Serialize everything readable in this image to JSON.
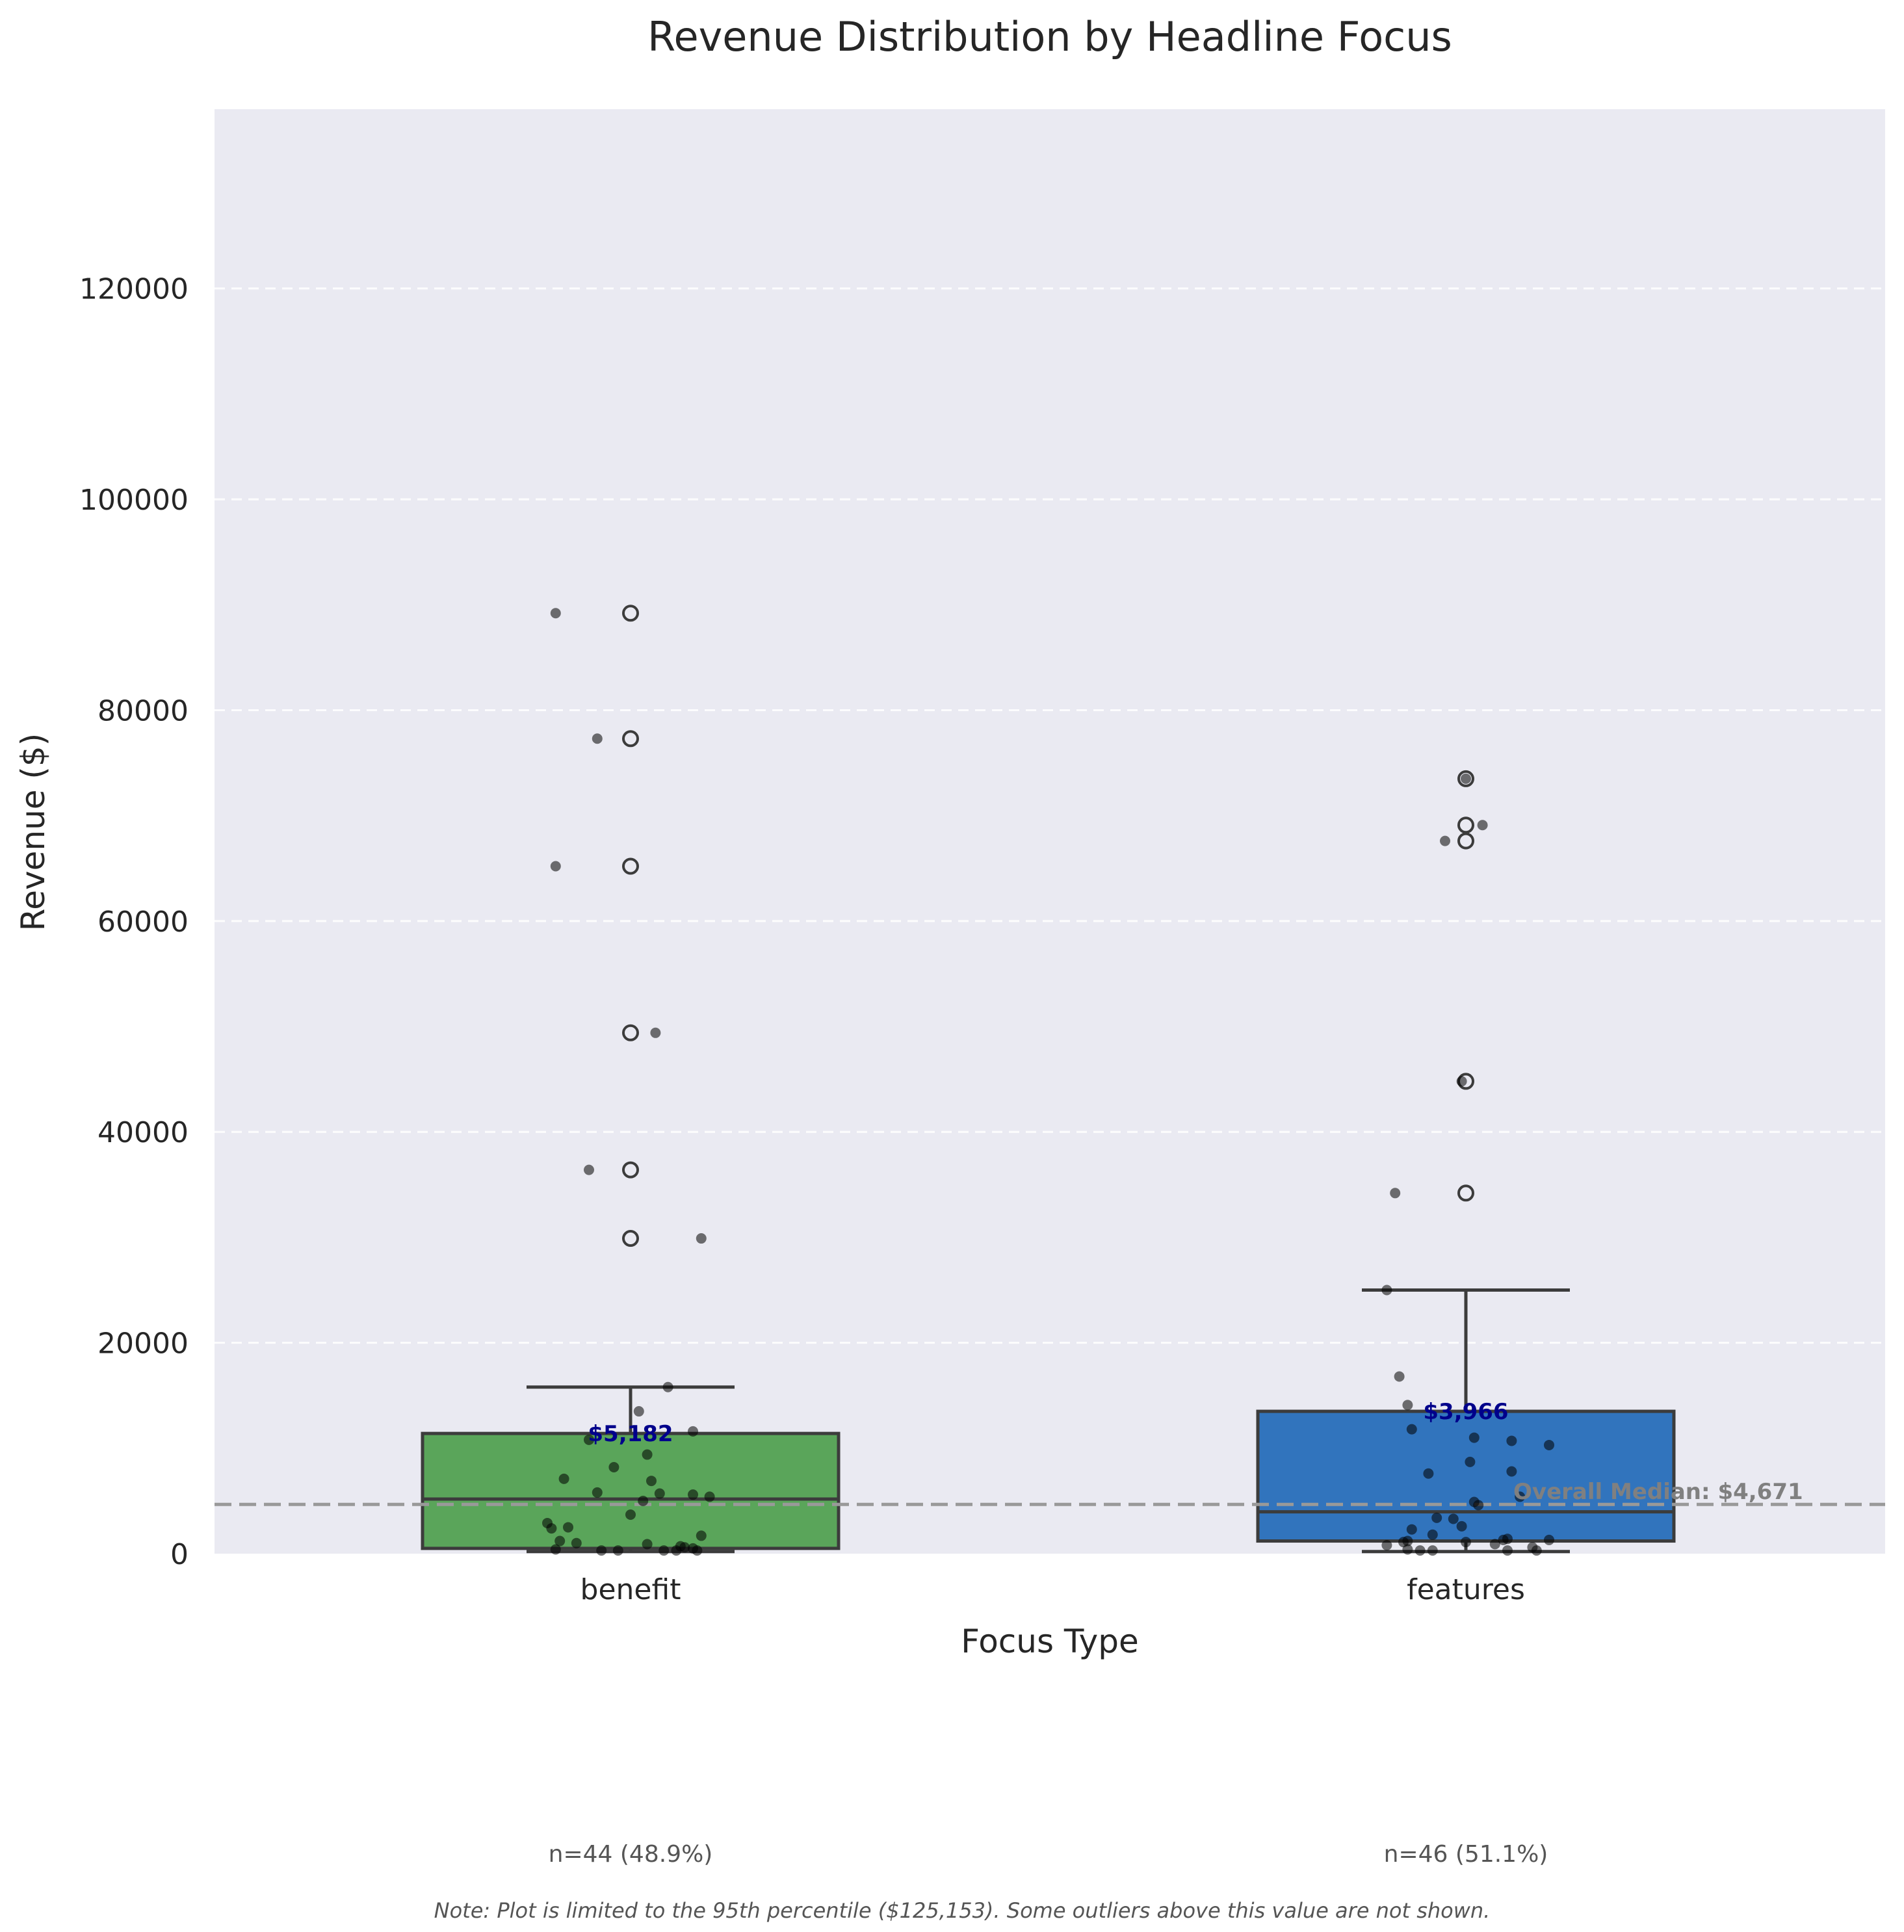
{
  "chart_data": {
    "type": "box",
    "title": "Revenue Distribution by Headline Focus",
    "xlabel": "Focus Type",
    "ylabel": "Revenue ($)",
    "ylim": [
      0,
      137000
    ],
    "yticks": [
      0,
      20000,
      40000,
      60000,
      80000,
      100000,
      120000
    ],
    "ytick_labels": [
      "0",
      "20000",
      "40000",
      "60000",
      "80000",
      "100000",
      "120000"
    ],
    "grid": true,
    "categories": [
      "benefit",
      "features"
    ],
    "colors": [
      "#5aa55a",
      "#3174bd"
    ],
    "boxes": [
      {
        "category": "benefit",
        "whisker_low": 200,
        "q1": 500,
        "median": 5182,
        "q3": 11400,
        "whisker_high": 15800,
        "outliers": [
          29900,
          36400,
          49400,
          65200,
          77300,
          89200
        ],
        "median_label": "$5,182",
        "count_label": "n=44 (48.9%)",
        "points": [
          [
            -0.18,
            89200
          ],
          [
            -0.08,
            77300
          ],
          [
            -0.18,
            65200
          ],
          [
            0.06,
            49400
          ],
          [
            -0.1,
            36400
          ],
          [
            0.17,
            29900
          ],
          [
            0.09,
            15800
          ],
          [
            0.02,
            13500
          ],
          [
            0.15,
            11600
          ],
          [
            -0.1,
            10800
          ],
          [
            0.04,
            9400
          ],
          [
            -0.04,
            8200
          ],
          [
            -0.16,
            7100
          ],
          [
            0.05,
            6900
          ],
          [
            -0.08,
            5800
          ],
          [
            0.07,
            5700
          ],
          [
            0.15,
            5600
          ],
          [
            0.19,
            5400
          ],
          [
            0.03,
            5000
          ],
          [
            0.0,
            3700
          ],
          [
            -0.2,
            2900
          ],
          [
            -0.15,
            2500
          ],
          [
            -0.19,
            2400
          ],
          [
            0.17,
            1700
          ],
          [
            -0.17,
            1200
          ],
          [
            -0.13,
            1000
          ],
          [
            0.04,
            900
          ],
          [
            0.12,
            700
          ],
          [
            0.13,
            600
          ],
          [
            0.15,
            500
          ],
          [
            -0.18,
            400
          ],
          [
            -0.07,
            300
          ],
          [
            -0.03,
            300
          ],
          [
            0.08,
            300
          ],
          [
            0.11,
            300
          ],
          [
            0.16,
            300
          ]
        ]
      },
      {
        "category": "features",
        "whisker_low": 200,
        "q1": 1200,
        "median": 3966,
        "q3": 13500,
        "whisker_high": 25000,
        "outliers": [
          34200,
          44800,
          67600,
          69100,
          73500
        ],
        "median_label": "$3,966",
        "count_label": "n=46 (51.1%)",
        "points": [
          [
            0.0,
            73500
          ],
          [
            0.04,
            69100
          ],
          [
            -0.05,
            67600
          ],
          [
            -0.01,
            44800
          ],
          [
            -0.17,
            34200
          ],
          [
            -0.19,
            25000
          ],
          [
            -0.16,
            16800
          ],
          [
            -0.14,
            14100
          ],
          [
            -0.13,
            11800
          ],
          [
            0.02,
            11000
          ],
          [
            0.11,
            10700
          ],
          [
            0.2,
            10300
          ],
          [
            0.01,
            8700
          ],
          [
            0.11,
            7800
          ],
          [
            -0.09,
            7600
          ],
          [
            0.13,
            5400
          ],
          [
            0.02,
            4900
          ],
          [
            0.03,
            4600
          ],
          [
            -0.07,
            3400
          ],
          [
            -0.03,
            3300
          ],
          [
            -0.01,
            2600
          ],
          [
            -0.13,
            2300
          ],
          [
            -0.08,
            1800
          ],
          [
            0.1,
            1400
          ],
          [
            0.09,
            1300
          ],
          [
            0.2,
            1300
          ],
          [
            -0.14,
            1200
          ],
          [
            -0.15,
            1100
          ],
          [
            0.0,
            1100
          ],
          [
            0.07,
            900
          ],
          [
            -0.19,
            800
          ],
          [
            0.16,
            600
          ],
          [
            -0.14,
            400
          ],
          [
            -0.11,
            300
          ],
          [
            -0.08,
            300
          ],
          [
            0.1,
            300
          ],
          [
            0.17,
            300
          ]
        ]
      }
    ],
    "reference_line": {
      "value": 4671,
      "label": "Overall Median: $4,671"
    },
    "note": "Note: Plot is limited to the 95th percentile ($125,153). Some outliers above this value are not shown."
  }
}
